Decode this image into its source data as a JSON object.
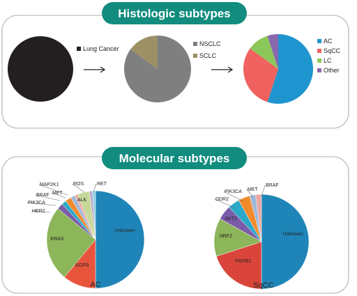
{
  "sections": {
    "histologic_title": "Histologic subtypes",
    "molecular_title": "Molecular subtypes"
  },
  "colors": {
    "banner": "#118c7e",
    "panel_border": "#c8c8c8"
  },
  "chart_data": [
    {
      "type": "pie",
      "legend_position": "right",
      "labels_on_slices": false,
      "slices": [
        {
          "label": "Lung Cancer",
          "value": 100,
          "color": "#231f20"
        }
      ]
    },
    {
      "type": "pie",
      "legend_position": "right",
      "labels_on_slices": false,
      "slices": [
        {
          "label": "NSCLC",
          "value": 85,
          "color": "#7f7f7f"
        },
        {
          "label": "SCLC",
          "value": 15,
          "color": "#9d9065"
        }
      ]
    },
    {
      "type": "pie",
      "legend_position": "right",
      "labels_on_slices": false,
      "slices": [
        {
          "label": "AC",
          "value": 55,
          "color": "#1f95cf"
        },
        {
          "label": "SqCC",
          "value": 30,
          "color": "#f0625f"
        },
        {
          "label": "LC",
          "value": 10,
          "color": "#8cc75a"
        },
        {
          "label": "Other",
          "value": 5,
          "color": "#8a68ae"
        }
      ]
    },
    {
      "type": "pie",
      "caption": "AC",
      "labels_on_slices": true,
      "slices": [
        {
          "label": "Unknown",
          "value": 50,
          "color": "#1f85b8"
        },
        {
          "label": "EGFR",
          "value": 11,
          "color": "#e8553d"
        },
        {
          "label": "KRAS",
          "value": 25,
          "color": "#8db55a"
        },
        {
          "label": "HER2",
          "value": 2,
          "color": "#7a5da8"
        },
        {
          "label": "PIK3CA",
          "value": 1.5,
          "color": "#2aa9c9"
        },
        {
          "label": "BRAF",
          "value": 2,
          "color": "#f28b2c"
        },
        {
          "label": "MET",
          "value": 1.5,
          "color": "#9fb8d8"
        },
        {
          "label": "MAP2K1",
          "value": 1,
          "color": "#e9a8a2"
        },
        {
          "label": "ALK",
          "value": 4,
          "color": "#c6d99a"
        },
        {
          "label": "ROS",
          "value": 1,
          "color": "#b9a8cc"
        },
        {
          "label": "RET",
          "value": 1,
          "color": "#8fd1e0"
        }
      ]
    },
    {
      "type": "pie",
      "caption": "SqCC",
      "labels_on_slices": true,
      "slices": [
        {
          "label": "Unknown",
          "value": 50,
          "color": "#1f85b8"
        },
        {
          "label": "FGFR1",
          "value": 20,
          "color": "#d9453a"
        },
        {
          "label": "NRF2",
          "value": 13,
          "color": "#8db55a"
        },
        {
          "label": "AKT1",
          "value": 5,
          "color": "#7a5da8"
        },
        {
          "label": "DDR2",
          "value": 4,
          "color": "#2aa9c9"
        },
        {
          "label": "PIK3CA",
          "value": 4,
          "color": "#f28b2c"
        },
        {
          "label": "MET",
          "value": 2,
          "color": "#9fb8d8"
        },
        {
          "label": "BRAF",
          "value": 2,
          "color": "#e9a8a2"
        }
      ]
    }
  ]
}
